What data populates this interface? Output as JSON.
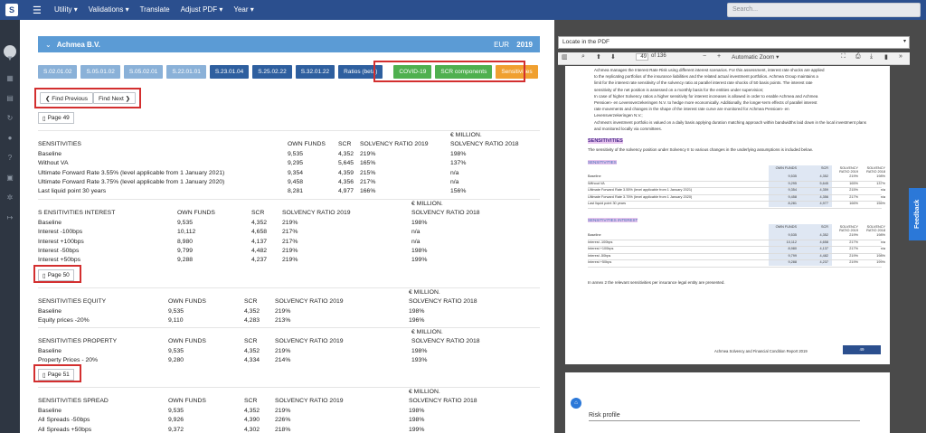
{
  "nav": {
    "logo": "S",
    "menu": [
      "Utility ▾",
      "Validations ▾",
      "Translate",
      "Adjust PDF ▾",
      "Year ▾"
    ],
    "search_placeholder": "Search..."
  },
  "entity": {
    "name": "Achmea B.V.",
    "currency": "EUR",
    "year": "2019"
  },
  "tabs": [
    "S.02.01.02",
    "S.05.01.02",
    "S.05.02.01",
    "S.22.01.01",
    "S.23.01.04",
    "S.25.02.22",
    "S.32.01.22",
    "Ratios (beta)",
    "COVID-19",
    "SCR components",
    "Sensitivities"
  ],
  "find": {
    "prev": "❮ Find Previous",
    "next": "Find Next ❯"
  },
  "pages": {
    "p49": "Page 49",
    "p50": "Page 50",
    "p51": "Page 51"
  },
  "sections": [
    {
      "unit": "€ MILLION.",
      "header": [
        "SENSITIVITIES",
        "OWN FUNDS",
        "SCR",
        "SOLVENCY RATIO 2019",
        "SOLVENCY RATIO 2018"
      ],
      "rows": [
        [
          "Baseline",
          "9,535",
          "4,352",
          "219%",
          "198%"
        ],
        [
          "Without VA",
          "9,295",
          "5,645",
          "165%",
          "137%"
        ],
        [
          "Ultimate Forward Rate 3.55% (level applicable from 1 January 2021)",
          "9,354",
          "4,359",
          "215%",
          "n/a"
        ],
        [
          "Ultimate Forward Rate 3.75% (level applicable from 1 January 2020)",
          "9,458",
          "4,356",
          "217%",
          "n/a"
        ],
        [
          "Last liquid point 30 years",
          "8,281",
          "4,977",
          "166%",
          "156%"
        ]
      ]
    },
    {
      "unit": "€ MILLION.",
      "header": [
        "S ENSITIVITIES INTEREST",
        "OWN FUNDS",
        "SCR",
        "SOLVENCY RATIO 2019",
        "SOLVENCY RATIO 2018"
      ],
      "rows": [
        [
          "Baseline",
          "9,535",
          "4,352",
          "219%",
          "198%"
        ],
        [
          "Interest -100bps",
          "10,112",
          "4,658",
          "217%",
          "n/a"
        ],
        [
          "Interest +100bps",
          "8,980",
          "4,137",
          "217%",
          "n/a"
        ],
        [
          "Interest -50bps",
          "9,799",
          "4,482",
          "219%",
          "198%"
        ],
        [
          "Interest +50bps",
          "9,288",
          "4,237",
          "219%",
          "199%"
        ]
      ]
    },
    {
      "unit": "€ MILLION.",
      "header": [
        "SENSITIVITIES EQUITY",
        "OWN FUNDS",
        "SCR",
        "SOLVENCY RATIO 2019",
        "SOLVENCY RATIO 2018"
      ],
      "rows": [
        [
          "Baseline",
          "9,535",
          "4,352",
          "219%",
          "198%"
        ],
        [
          "Equity prices -20%",
          "9,110",
          "4,283",
          "213%",
          "196%"
        ]
      ]
    },
    {
      "unit": "€ MILLION.",
      "header": [
        "SENSITIVITIES PROPERTY",
        "OWN FUNDS",
        "SCR",
        "SOLVENCY RATIO 2019",
        "SOLVENCY RATIO 2018"
      ],
      "rows": [
        [
          "Baseline",
          "9,535",
          "4,352",
          "219%",
          "198%"
        ],
        [
          "Property Prices - 20%",
          "9,280",
          "4,334",
          "214%",
          "193%"
        ]
      ]
    },
    {
      "unit": "€ MILLION.",
      "header": [
        "SENSITIVITIES SPREAD",
        "OWN FUNDS",
        "SCR",
        "SOLVENCY RATIO 2019",
        "SOLVENCY RATIO 2018"
      ],
      "rows": [
        [
          "Baseline",
          "9,535",
          "4,352",
          "219%",
          "198%"
        ],
        [
          "All Spreads -50bps",
          "9,926",
          "4,390",
          "226%",
          "198%"
        ],
        [
          "All Spreads +50bps",
          "9,372",
          "4,302",
          "218%",
          "199%"
        ]
      ]
    }
  ],
  "pdf": {
    "locate": "Locate in the PDF",
    "page": "49",
    "of": "of 136",
    "zoom": "Automatic Zoom",
    "bullets": [
      "Achmea manages the Interest Rate Risk using different interest scenarios. For this assessment, interest rate shocks are applied",
      "to the replicating portfolios of the insurance liabilities and the related actual investment portfolios. Achmea Group maintains a",
      "limit for the interest rate sensitivity of the solvency ratio at parallel interest rate shocks of 50 basis points. The interest rate",
      "sensitivity of the net position is assessed on a monthly basis for the entities under supervision;",
      "In case of higher Solvency ratios a higher sensitivity for interest increases is allowed in order to enable Achmea and Achmea",
      "Pensioen- en Levensverzekeringen N.V. to hedge more economically. Additionally, the longer-term effects of parallel interest",
      "rate movements and changes in the shape of the interest rate curve are monitored for Achmea Pensioen- en",
      "Levensverzekeringen N.V.;",
      "Achmea's investment portfolio is valued on a daily basis applying duration matching approach within bandwidths laid down in the local investment plans",
      "and monitored locally via committees."
    ],
    "sens_title": "SENSITIVITIES",
    "sens_intro": "The sensitivity of the solvency position under Solvency II to various changes in the underlying assumptions is included below.",
    "table1_title": "SENSITIVITIES",
    "table2_title": "SENSITIVITIES INTEREST",
    "annex": "In annex 2 the relevant sensitivities per insurance legal entity are presented.",
    "footer": "Achmea Solvency and Financial Condition Report 2019",
    "footer_page": "49",
    "page2_title": "Risk profile"
  },
  "feedback": "Feedback"
}
